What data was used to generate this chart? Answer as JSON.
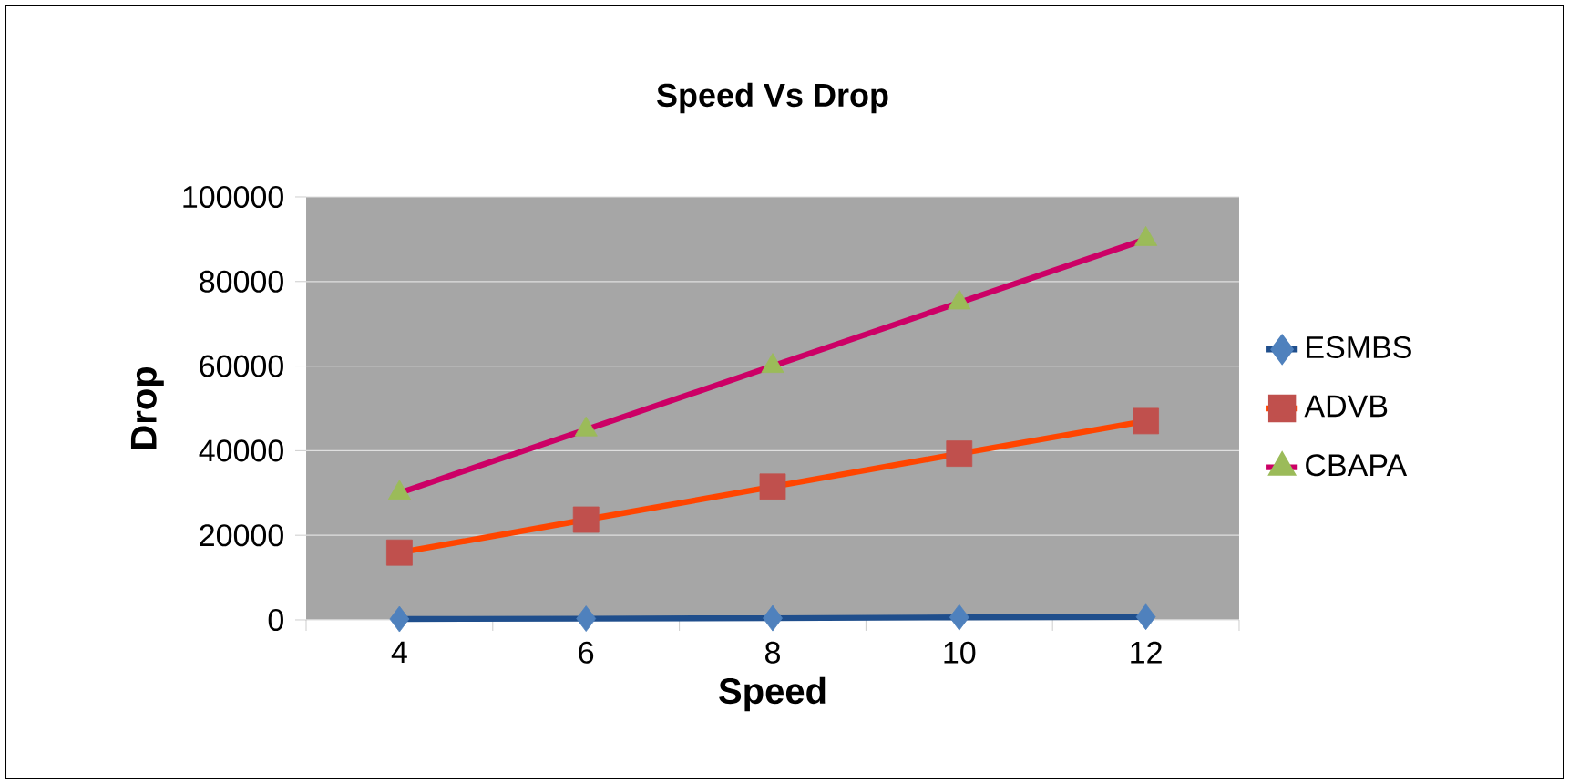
{
  "chart_data": {
    "type": "line",
    "title": "Speed Vs Drop",
    "xlabel": "Speed",
    "ylabel": "Drop",
    "categories": [
      "4",
      "6",
      "8",
      "10",
      "12"
    ],
    "series": [
      {
        "name": "ESMBS",
        "color": "#1f4e8c",
        "colors": [
          "#4f81bd",
          "#4f81bd",
          "#4f81bd",
          "#4f81bd",
          "#4f81bd"
        ],
        "marker": "diamond",
        "values": [
          200,
          300,
          400,
          600,
          700
        ]
      },
      {
        "name": "ADVB",
        "color": "#ff4500",
        "colors": [
          "#c0504d",
          "#c0504d",
          "#c0504d",
          "#c0504d",
          "#c0504d"
        ],
        "marker": "square",
        "values": [
          15900,
          23700,
          31500,
          39300,
          47000
        ]
      },
      {
        "name": "CBAPA",
        "color": "#cc0066",
        "colors": [
          "#9bbb59",
          "#9bbb59",
          "#9bbb59",
          "#9bbb59",
          "#9bbb59"
        ],
        "marker": "triangle",
        "values": [
          30000,
          45000,
          60000,
          75000,
          90000
        ]
      }
    ],
    "ylim": [
      0,
      100000
    ],
    "yticks": [
      0,
      20000,
      40000,
      60000,
      80000,
      100000
    ],
    "grid": "y",
    "legend": "right"
  }
}
